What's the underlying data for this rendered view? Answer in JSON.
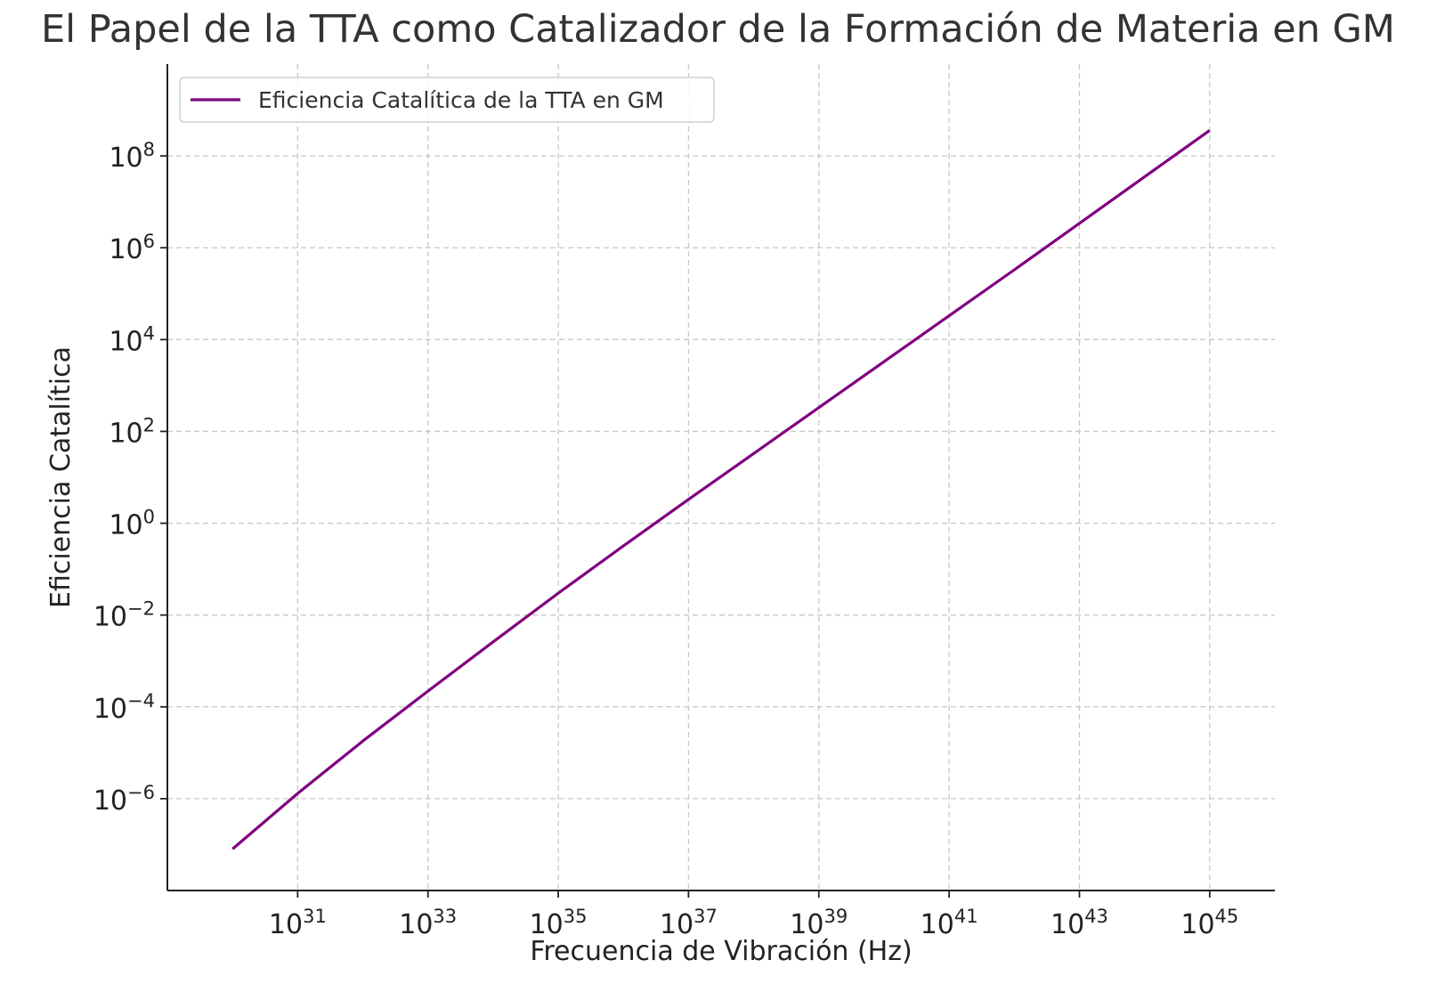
{
  "chart_data": {
    "type": "line",
    "title": "El Papel de la TTA como Catalizador de la Formación de Materia en GM",
    "xlabel": "Frecuencia de Vibración (Hz)",
    "ylabel": "Eficiencia Catalítica",
    "xscale": "log",
    "yscale": "log",
    "xlim": [
      1e+29,
      1e+46
    ],
    "ylim": [
      1e-08,
      10000000000.0
    ],
    "xticks": [
      1e+31,
      1e+33,
      1e+35,
      1e+37,
      1e+39,
      1e+41,
      1e+43,
      1e+45
    ],
    "xtick_labels": [
      {
        "base": "10",
        "exp": "31"
      },
      {
        "base": "10",
        "exp": "33"
      },
      {
        "base": "10",
        "exp": "35"
      },
      {
        "base": "10",
        "exp": "37"
      },
      {
        "base": "10",
        "exp": "39"
      },
      {
        "base": "10",
        "exp": "41"
      },
      {
        "base": "10",
        "exp": "43"
      },
      {
        "base": "10",
        "exp": "45"
      }
    ],
    "yticks": [
      1e-06,
      0.0001,
      0.01,
      1.0,
      100.0,
      10000.0,
      1000000.0,
      100000000.0
    ],
    "ytick_labels": [
      {
        "base": "10",
        "exp": "−6"
      },
      {
        "base": "10",
        "exp": "−4"
      },
      {
        "base": "10",
        "exp": "−2"
      },
      {
        "base": "10",
        "exp": "0"
      },
      {
        "base": "10",
        "exp": "2"
      },
      {
        "base": "10",
        "exp": "4"
      },
      {
        "base": "10",
        "exp": "6"
      },
      {
        "base": "10",
        "exp": "8"
      }
    ],
    "grid": true,
    "legend_position": "top-left",
    "series": [
      {
        "name": "Eficiencia Catalítica de la TTA en GM",
        "color": "#800080",
        "x": [
          1e+30,
          1e+31,
          1e+32,
          1e+33,
          1e+34,
          1e+35,
          1e+36,
          1e+37,
          1e+38,
          1e+39,
          1e+40,
          1e+41,
          1e+42,
          1e+43,
          1e+44,
          1e+45
        ],
        "y": [
          8e-08,
          1.3e-06,
          1.8e-05,
          0.00022,
          0.0026,
          0.03,
          0.32,
          3.3,
          33,
          330,
          3300,
          33000.0,
          330000.0,
          3400000.0,
          35000000.0,
          360000000.0
        ]
      }
    ]
  }
}
